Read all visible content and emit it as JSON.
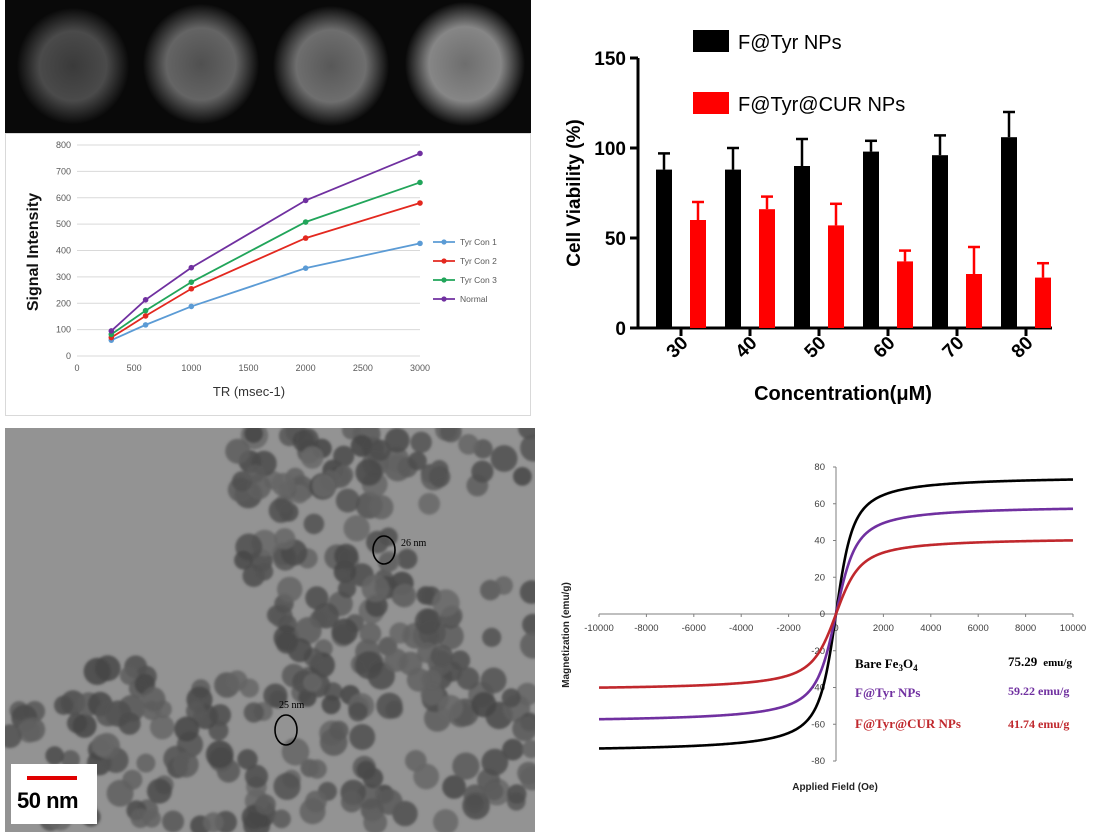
{
  "colors": {
    "tyr_con1": "#5b9bd5",
    "tyr_con2": "#e3281f",
    "tyr_con3": "#21a55a",
    "normal": "#7030a0",
    "bar_black": "#000000",
    "bar_red": "#ff0000",
    "bare": "#000000",
    "ftyr": "#7030a0",
    "fcur": "#c0282d"
  },
  "chart_data": [
    {
      "type": "line",
      "title": "",
      "xlabel": "TR (msec-1)",
      "ylabel": "Signal Intensity",
      "xlim": [
        0,
        3000
      ],
      "ylim": [
        0,
        800
      ],
      "x_ticks": [
        "0",
        "500",
        "1000",
        "1500",
        "2000",
        "2500",
        "3000"
      ],
      "y_ticks": [
        "0",
        "100",
        "200",
        "300",
        "400",
        "500",
        "600",
        "700",
        "800"
      ],
      "grid": "horizontal",
      "legend": "right",
      "x": [
        300,
        600,
        1000,
        2000,
        3000
      ],
      "series": [
        {
          "name": "Tyr Con 1",
          "values": [
            60,
            118,
            188,
            333,
            427
          ]
        },
        {
          "name": "Tyr Con 2",
          "values": [
            70,
            152,
            255,
            447,
            580
          ]
        },
        {
          "name": "Tyr Con 3",
          "values": [
            82,
            172,
            280,
            508,
            658
          ]
        },
        {
          "name": "Normal",
          "values": [
            95,
            213,
            335,
            590,
            768
          ]
        }
      ]
    },
    {
      "type": "bar",
      "title": "",
      "xlabel": "Concentration(μM)",
      "ylabel": "Cell Viability (%)",
      "ylim": [
        0,
        150
      ],
      "y_ticks": [
        "0",
        "50",
        "100",
        "150"
      ],
      "categories": [
        "30",
        "40",
        "50",
        "60",
        "70",
        "80"
      ],
      "legend": "top",
      "series": [
        {
          "name": "F@Tyr NPs",
          "values": [
            88,
            88,
            90,
            98,
            96,
            106
          ],
          "errors": [
            9,
            12,
            15,
            6,
            11,
            14
          ]
        },
        {
          "name": "F@Tyr@CUR NPs",
          "values": [
            60,
            66,
            57,
            37,
            30,
            28
          ],
          "errors": [
            10,
            7,
            12,
            6,
            15,
            8
          ]
        }
      ]
    },
    {
      "type": "line",
      "title": "",
      "xlabel": "Applied Field (Oe)",
      "ylabel": "Magnetization (emu/g)",
      "xlim": [
        -10000,
        10000
      ],
      "ylim": [
        -80,
        80
      ],
      "x_ticks": [
        "-10000",
        "-8000",
        "-6000",
        "-4000",
        "-2000",
        "0",
        "2000",
        "4000",
        "6000",
        "8000",
        "10000"
      ],
      "y_ticks": [
        "-80",
        "-60",
        "-40",
        "-20",
        "0",
        "20",
        "40",
        "60",
        "80"
      ],
      "series": [
        {
          "name": "Bare Fe3O4",
          "saturation": 75.29
        },
        {
          "name": "F@Tyr NPs",
          "saturation": 59.22
        },
        {
          "name": "F@Tyr@CUR NPs",
          "saturation": 41.74
        }
      ]
    }
  ],
  "mag_legend": [
    {
      "name_main": "Bare Fe",
      "name_sub1": "3",
      "name_mid": "O",
      "name_sub2": "4",
      "value": "75.29",
      "unit": "emu/g"
    },
    {
      "name": "F@Tyr NPs",
      "value": "59.22 emu/g"
    },
    {
      "name": "F@Tyr@CUR NPs",
      "value": "41.74 emu/g"
    }
  ],
  "tem": {
    "label_26": "26 nm",
    "label_25": "25 nm",
    "scale_label": "50 nm"
  }
}
